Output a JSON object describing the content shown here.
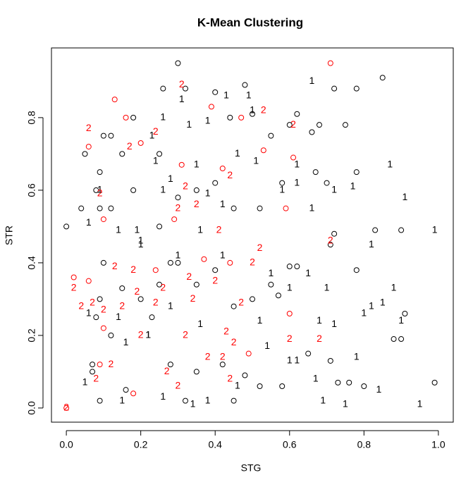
{
  "chart_data": {
    "type": "scatter",
    "title": "K-Mean Clustering",
    "xlabel": "STG",
    "ylabel": "STR",
    "xlim": [
      -0.04,
      1.04
    ],
    "ylim": [
      -0.039,
      0.992
    ],
    "xticks": [
      {
        "value": 0,
        "label": "0.0"
      },
      0.2,
      0.4,
      0.6,
      0.8,
      {
        "value": 1,
        "label": "1.0"
      }
    ],
    "yticks": [
      {
        "value": 0,
        "label": "0.0"
      },
      0.2,
      0.4,
      0.6,
      0.8
    ],
    "series": [
      {
        "marker": "circle",
        "color": "#000000",
        "x": [
          0,
          0.05,
          0.07,
          0.08,
          0.09,
          0.1,
          0.12,
          0.15,
          0.18,
          0.25,
          0.26,
          0.3,
          0.32,
          0.4,
          0.44,
          0.48,
          0.5,
          0.55,
          0.6,
          0.62,
          0.66,
          0.68,
          0.72,
          0.78,
          0.85,
          0.75,
          0.78,
          0.67,
          0.7,
          0.58,
          0.52,
          0.45,
          0.4,
          0.35,
          0.3,
          0.25,
          0.18,
          0.12,
          0.04,
          0.09,
          0.72,
          0.71,
          0.83,
          0.9,
          0.78,
          0.6,
          0.62,
          0.55,
          0.57,
          0.5,
          0.45,
          0.4,
          0.35,
          0.3,
          0.28,
          0.25,
          0.2,
          0.15,
          0.1,
          0.09,
          0.08,
          0.12,
          0.23,
          0.28,
          0.35,
          0.42,
          0.48,
          0.52,
          0.58,
          0.65,
          0.71,
          0.73,
          0.76,
          0.8,
          0.88,
          0.9,
          0.91,
          0.99,
          0.32,
          0.45,
          0.16,
          0.09,
          0.07
        ],
        "y": [
          0.5,
          0.7,
          0.12,
          0.6,
          0.65,
          0.75,
          0.75,
          0.7,
          0.8,
          0.7,
          0.88,
          0.95,
          0.88,
          0.87,
          0.8,
          0.89,
          0.81,
          0.75,
          0.78,
          0.81,
          0.76,
          0.78,
          0.88,
          0.88,
          0.91,
          0.78,
          0.65,
          0.65,
          0.62,
          0.62,
          0.55,
          0.55,
          0.62,
          0.6,
          0.58,
          0.5,
          0.6,
          0.55,
          0.55,
          0.55,
          0.48,
          0.45,
          0.49,
          0.49,
          0.38,
          0.39,
          0.39,
          0.34,
          0.31,
          0.3,
          0.28,
          0.38,
          0.34,
          0.4,
          0.4,
          0.34,
          0.3,
          0.33,
          0.4,
          0.3,
          0.25,
          0.2,
          0.25,
          0.12,
          0.1,
          0.12,
          0.09,
          0.06,
          0.06,
          0.15,
          0.13,
          0.07,
          0.07,
          0.06,
          0.19,
          0.19,
          0.26,
          0.07,
          0.02,
          0.02,
          0.05,
          0.02,
          0.1
        ]
      },
      {
        "marker": "circle",
        "color": "#ff0000",
        "x": [
          0.13,
          0.16,
          0.06,
          0.2,
          0.39,
          0.47,
          0.53,
          0.61,
          0.71,
          0.42,
          0.31,
          0.29,
          0.1,
          0.02,
          0.06,
          0.1,
          0.24,
          0.37,
          0.6,
          0.49,
          0.18,
          0.09,
          0.44,
          0.59,
          0
        ],
        "y": [
          0.85,
          0.8,
          0.72,
          0.73,
          0.83,
          0.8,
          0.71,
          0.69,
          0.95,
          0.66,
          0.67,
          0.52,
          0.52,
          0.36,
          0.35,
          0.22,
          0.38,
          0.41,
          0.26,
          0.15,
          0.04,
          0.12,
          0.4,
          0.55,
          0
        ]
      },
      {
        "marker": "text",
        "text": "1",
        "color": "#000000",
        "x": [
          0.66,
          0.49,
          0.43,
          0.31,
          0.5,
          0.26,
          0.23,
          0.33,
          0.38,
          0.24,
          0.28,
          0.35,
          0.46,
          0.51,
          0.62,
          0.87,
          0.58,
          0.62,
          0.72,
          0.77,
          0.91,
          0.38,
          0.42,
          0.26,
          0.09,
          0.06,
          0.14,
          0.19,
          0.2,
          0.36,
          0.66,
          0.99,
          0.82,
          0.2,
          0.3,
          0.42,
          0.55,
          0.65,
          0.7,
          0.6,
          0.72,
          0.8,
          0.82,
          0.85,
          0.88,
          0.9,
          0.68,
          0.52,
          0.36,
          0.28,
          0.22,
          0.14,
          0.06,
          0.16,
          0.22,
          0.54,
          0.6,
          0.62,
          0.67,
          0.78,
          0.84,
          0.46,
          0.38,
          0.34,
          0.26,
          0.15,
          0.05,
          0.69,
          0.75,
          0.95
        ],
        "y": [
          0.9,
          0.86,
          0.86,
          0.85,
          0.82,
          0.8,
          0.75,
          0.78,
          0.79,
          0.68,
          0.63,
          0.67,
          0.7,
          0.68,
          0.67,
          0.67,
          0.6,
          0.62,
          0.6,
          0.61,
          0.58,
          0.59,
          0.56,
          0.6,
          0.6,
          0.51,
          0.49,
          0.49,
          0.46,
          0.49,
          0.55,
          0.49,
          0.45,
          0.45,
          0.42,
          0.42,
          0.37,
          0.37,
          0.33,
          0.33,
          0.23,
          0.26,
          0.28,
          0.29,
          0.33,
          0.24,
          0.24,
          0.24,
          0.23,
          0.28,
          0.2,
          0.25,
          0.26,
          0.18,
          0.2,
          0.17,
          0.13,
          0.13,
          0.08,
          0.14,
          0.05,
          0.06,
          0.02,
          0.01,
          0.03,
          0.02,
          0.07,
          0.02,
          0.01,
          0.01
        ]
      },
      {
        "marker": "text",
        "text": "2",
        "color": "#ff0000",
        "x": [
          0.06,
          0.31,
          0.17,
          0.24,
          0.53,
          0.61,
          0.09,
          0.35,
          0.3,
          0.32,
          0.41,
          0.44,
          0.71,
          0.52,
          0.5,
          0.13,
          0.18,
          0.04,
          0.07,
          0.02,
          0.15,
          0.1,
          0.19,
          0.26,
          0.24,
          0.33,
          0.4,
          0.47,
          0.34,
          0.43,
          0.32,
          0.2,
          0.45,
          0.6,
          0.68,
          0.38,
          0.42,
          0.12,
          0.08,
          0.27,
          0.3,
          0.44,
          0
        ],
        "y": [
          0.77,
          0.89,
          0.72,
          0.76,
          0.82,
          0.78,
          0.59,
          0.56,
          0.55,
          0.61,
          0.49,
          0.64,
          0.46,
          0.44,
          0.4,
          0.39,
          0.38,
          0.28,
          0.29,
          0.33,
          0.28,
          0.27,
          0.32,
          0.33,
          0.29,
          0.36,
          0.35,
          0.29,
          0.3,
          0.21,
          0.2,
          0.2,
          0.18,
          0.19,
          0.19,
          0.14,
          0.14,
          0.12,
          0.08,
          0.1,
          0.06,
          0.08,
          0
        ]
      }
    ]
  }
}
